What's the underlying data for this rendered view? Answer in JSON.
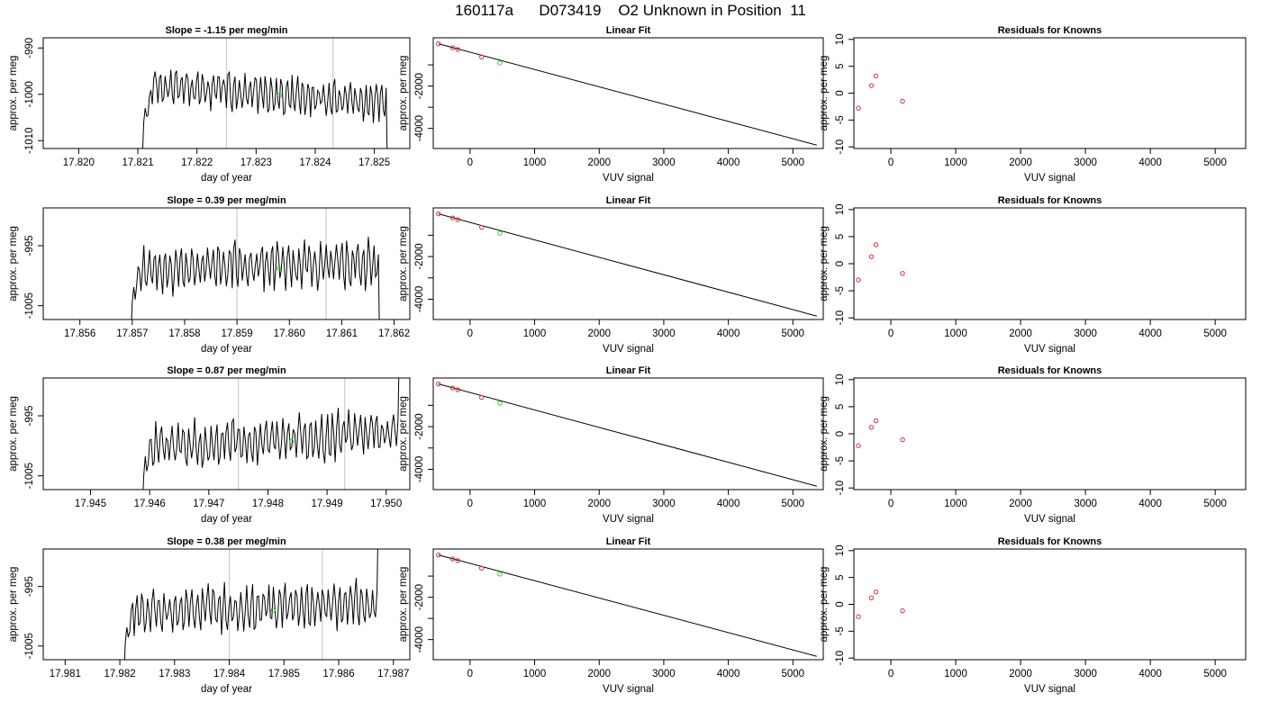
{
  "title": "160117a      D073419    O2 Unknown in Position  11",
  "chart_data": [
    {
      "type": "line",
      "row": 0,
      "panel": "time-series",
      "title": "Slope =  -1.15  per meg/min",
      "xlabel": "day of year",
      "ylabel": "approx. per meg",
      "xticks": [
        "17.820",
        "17.821",
        "17.822",
        "17.823",
        "17.824",
        "17.825"
      ],
      "yticks": [
        "-1010",
        "-1000",
        "-990"
      ],
      "xlim": [
        17.8194,
        17.8256
      ],
      "ylim": [
        -1011.7,
        -987.8
      ],
      "shift": [
        17.8211,
        17.8252
      ],
      "vlines": [
        17.8225,
        17.8243
      ],
      "marker": [
        17.8234,
        -1000.2
      ],
      "trend": -1.15,
      "mean": -1000
    },
    {
      "type": "scatter",
      "row": 0,
      "panel": "linear-fit",
      "title": "Linear Fit",
      "xlabel": "VUV signal",
      "ylabel": "approx. per meg",
      "xticks": [
        "0",
        "1000",
        "2000",
        "3000",
        "4000",
        "5000"
      ],
      "yticks": [
        "-4000",
        "-2000"
      ],
      "xlim": [
        -570,
        5470
      ],
      "ylim": [
        -4950,
        280
      ],
      "knowns": [
        [
          -490,
          0
        ],
        [
          -270,
          -190
        ],
        [
          -190,
          -270
        ],
        [
          180,
          -630
        ]
      ],
      "unknown": [
        460,
        -905
      ],
      "fit_line": [
        [
          -490,
          0
        ],
        [
          5370,
          -4790
        ]
      ]
    },
    {
      "type": "scatter",
      "row": 0,
      "panel": "residuals",
      "title": "Residuals for Knowns",
      "xlabel": "VUV signal",
      "ylabel": "approx. per meg",
      "xticks": [
        "0",
        "1000",
        "2000",
        "3000",
        "4000",
        "5000"
      ],
      "yticks": [
        "-10",
        "-5",
        "0",
        "5",
        "10"
      ],
      "xlim": [
        -570,
        5470
      ],
      "ylim": [
        -10.3,
        10.3
      ],
      "points": [
        [
          -500,
          -2.8
        ],
        [
          -300,
          1.4
        ],
        [
          -230,
          3.2
        ],
        [
          180,
          -1.5
        ]
      ]
    },
    {
      "type": "line",
      "row": 1,
      "panel": "time-series",
      "title": "Slope =  0.39  per meg/min",
      "xlabel": "day of year",
      "ylabel": "approx. per meg",
      "xticks": [
        "17.856",
        "17.857",
        "17.858",
        "17.859",
        "17.860",
        "17.861",
        "17.862"
      ],
      "yticks": [
        "-1005",
        "-995"
      ],
      "xlim": [
        17.8553,
        17.8623
      ],
      "ylim": [
        -1007.3,
        -988.7
      ],
      "shift": [
        17.857,
        17.8617
      ],
      "vlines": [
        17.859,
        17.8607
      ],
      "marker": [
        17.8598,
        -998.8
      ],
      "trend": 0.39,
      "mean": -998.5
    },
    {
      "type": "scatter",
      "row": 1,
      "panel": "linear-fit",
      "title": "Linear Fit",
      "xlabel": "VUV signal",
      "ylabel": "approx. per meg",
      "xticks": [
        "0",
        "1000",
        "2000",
        "3000",
        "4000",
        "5000"
      ],
      "yticks": [
        "-4000",
        "-2000"
      ],
      "xlim": [
        -570,
        5470
      ],
      "ylim": [
        -4950,
        280
      ],
      "knowns": [
        [
          -490,
          0
        ],
        [
          -270,
          -190
        ],
        [
          -190,
          -270
        ],
        [
          180,
          -630
        ]
      ],
      "unknown": [
        460,
        -905
      ],
      "fit_line": [
        [
          -490,
          0
        ],
        [
          5370,
          -4790
        ]
      ]
    },
    {
      "type": "scatter",
      "row": 1,
      "panel": "residuals",
      "title": "Residuals for Knowns",
      "xlabel": "VUV signal",
      "ylabel": "approx. per meg",
      "xticks": [
        "0",
        "1000",
        "2000",
        "3000",
        "4000",
        "5000"
      ],
      "yticks": [
        "-10",
        "-5",
        "0",
        "5",
        "10"
      ],
      "xlim": [
        -570,
        5470
      ],
      "ylim": [
        -10.3,
        10.3
      ],
      "points": [
        [
          -500,
          -3
        ],
        [
          -300,
          1.3
        ],
        [
          -230,
          3.5
        ],
        [
          180,
          -1.8
        ]
      ]
    },
    {
      "type": "line",
      "row": 2,
      "panel": "time-series",
      "title": "Slope =  0.87  per meg/min",
      "xlabel": "day of year",
      "ylabel": "approx. per meg",
      "xticks": [
        "17.945",
        "17.946",
        "17.947",
        "17.948",
        "17.949",
        "17.950"
      ],
      "yticks": [
        "-1005",
        "-995"
      ],
      "xlim": [
        17.9442,
        17.9504
      ],
      "ylim": [
        -1007.3,
        -988.7
      ],
      "shift": [
        17.9459,
        17.9502
      ],
      "vlines": [
        17.9475,
        17.9493
      ],
      "marker": [
        17.9484,
        -999.3
      ],
      "trend": 0.87,
      "mean": -999
    },
    {
      "type": "scatter",
      "row": 2,
      "panel": "linear-fit",
      "title": "Linear Fit",
      "xlabel": "VUV signal",
      "ylabel": "approx. per meg",
      "xticks": [
        "0",
        "1000",
        "2000",
        "3000",
        "4000",
        "5000"
      ],
      "yticks": [
        "-4000",
        "-2000"
      ],
      "xlim": [
        -570,
        5470
      ],
      "ylim": [
        -4950,
        280
      ],
      "knowns": [
        [
          -490,
          0
        ],
        [
          -270,
          -190
        ],
        [
          -190,
          -270
        ],
        [
          180,
          -630
        ]
      ],
      "unknown": [
        460,
        -905
      ],
      "fit_line": [
        [
          -490,
          0
        ],
        [
          5370,
          -4790
        ]
      ]
    },
    {
      "type": "scatter",
      "row": 2,
      "panel": "residuals",
      "title": "Residuals for Knowns",
      "xlabel": "VUV signal",
      "ylabel": "approx. per meg",
      "xticks": [
        "0",
        "1000",
        "2000",
        "3000",
        "4000",
        "5000"
      ],
      "yticks": [
        "-10",
        "-5",
        "0",
        "5",
        "10"
      ],
      "xlim": [
        -570,
        5470
      ],
      "ylim": [
        -10.3,
        10.3
      ],
      "points": [
        [
          -500,
          -2.2
        ],
        [
          -300,
          1.2
        ],
        [
          -230,
          2.4
        ],
        [
          180,
          -1.1
        ]
      ]
    },
    {
      "type": "line",
      "row": 3,
      "panel": "time-series",
      "title": "Slope =  0.38  per meg/min",
      "xlabel": "day of year",
      "ylabel": "approx. per meg",
      "xticks": [
        "17.981",
        "17.982",
        "17.983",
        "17.984",
        "17.985",
        "17.986",
        "17.987"
      ],
      "yticks": [
        "-1005",
        "-995"
      ],
      "xlim": [
        17.9806,
        17.9873
      ],
      "ylim": [
        -1007.3,
        -988.7
      ],
      "shift": [
        17.9821,
        17.9867
      ],
      "vlines": [
        17.984,
        17.9857
      ],
      "marker": [
        17.9848,
        -999
      ],
      "trend": 0.38,
      "mean": -998.5
    },
    {
      "type": "scatter",
      "row": 3,
      "panel": "linear-fit",
      "title": "Linear Fit",
      "xlabel": "VUV signal",
      "ylabel": "approx. per meg",
      "xticks": [
        "0",
        "1000",
        "2000",
        "3000",
        "4000",
        "5000"
      ],
      "yticks": [
        "-4000",
        "-2000"
      ],
      "xlim": [
        -570,
        5470
      ],
      "ylim": [
        -4950,
        280
      ],
      "knowns": [
        [
          -490,
          0
        ],
        [
          -270,
          -190
        ],
        [
          -190,
          -270
        ],
        [
          180,
          -630
        ]
      ],
      "unknown": [
        460,
        -905
      ],
      "fit_line": [
        [
          -490,
          0
        ],
        [
          5370,
          -4790
        ]
      ]
    },
    {
      "type": "scatter",
      "row": 3,
      "panel": "residuals",
      "title": "Residuals for Knowns",
      "xlabel": "VUV signal",
      "ylabel": "approx. per meg",
      "xticks": [
        "0",
        "1000",
        "2000",
        "3000",
        "4000",
        "5000"
      ],
      "yticks": [
        "-10",
        "-5",
        "0",
        "5",
        "10"
      ],
      "xlim": [
        -570,
        5470
      ],
      "ylim": [
        -10.3,
        10.3
      ],
      "points": [
        [
          -500,
          -2.3
        ],
        [
          -300,
          1.2
        ],
        [
          -230,
          2.3
        ],
        [
          180,
          -1.2
        ]
      ]
    }
  ],
  "colors": {
    "known_point": "#cc3333",
    "unknown_point": "#33cc33",
    "shift_line": "#cccccc",
    "axis": "#000000"
  }
}
